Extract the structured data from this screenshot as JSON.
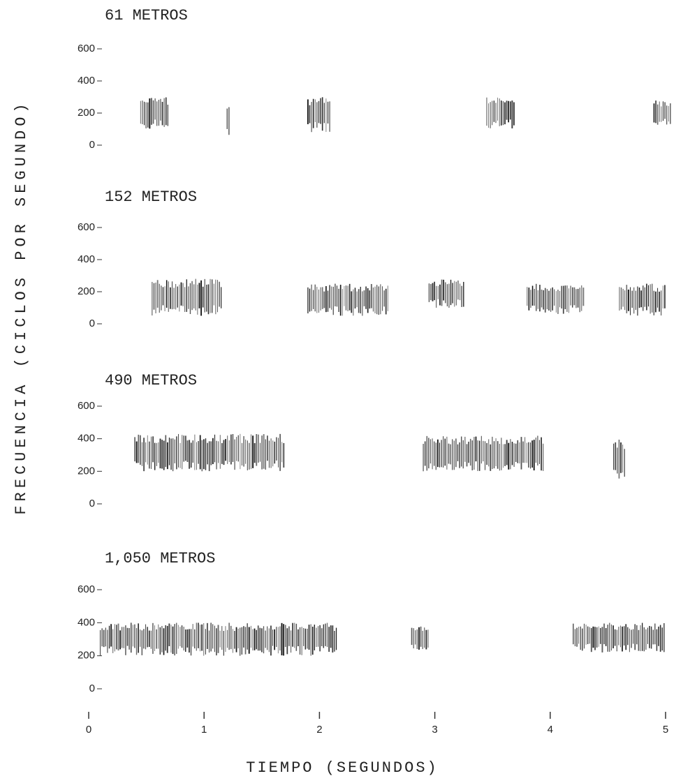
{
  "chart_data": [
    {
      "type": "spectrogram",
      "title": "61 METROS",
      "ylabel": "FRECUENCIA (CICLOS POR SEGUNDO)",
      "ylim": [
        0,
        600
      ],
      "yticks": [
        0,
        200,
        400,
        600
      ],
      "bursts": [
        {
          "t": [
            0.45,
            0.7
          ],
          "f": [
            100,
            300
          ]
        },
        {
          "t": [
            1.2,
            1.23
          ],
          "f": [
            50,
            250
          ]
        },
        {
          "t": [
            1.9,
            2.1
          ],
          "f": [
            80,
            300
          ]
        },
        {
          "t": [
            3.45,
            3.7
          ],
          "f": [
            100,
            300
          ]
        },
        {
          "t": [
            4.9,
            5.05
          ],
          "f": [
            120,
            280
          ]
        }
      ]
    },
    {
      "type": "spectrogram",
      "title": "152 METROS",
      "ylim": [
        0,
        600
      ],
      "yticks": [
        0,
        200,
        400,
        600
      ],
      "bursts": [
        {
          "t": [
            0.55,
            1.15
          ],
          "f": [
            50,
            280
          ]
        },
        {
          "t": [
            1.9,
            2.6
          ],
          "f": [
            50,
            250
          ]
        },
        {
          "t": [
            2.95,
            3.25
          ],
          "f": [
            100,
            280
          ]
        },
        {
          "t": [
            3.8,
            4.3
          ],
          "f": [
            60,
            250
          ]
        },
        {
          "t": [
            4.6,
            5.0
          ],
          "f": [
            50,
            250
          ]
        }
      ]
    },
    {
      "type": "spectrogram",
      "title": "490 METROS",
      "ylim": [
        0,
        600
      ],
      "yticks": [
        0,
        200,
        400,
        600
      ],
      "bursts": [
        {
          "t": [
            0.4,
            1.7
          ],
          "f": [
            200,
            430
          ]
        },
        {
          "t": [
            2.9,
            3.95
          ],
          "f": [
            200,
            420
          ]
        },
        {
          "t": [
            4.55,
            4.65
          ],
          "f": [
            150,
            400
          ]
        }
      ]
    },
    {
      "type": "spectrogram",
      "title": "1,050 METROS",
      "xlabel": "TIEMPO (SEGUNDOS)",
      "xlim": [
        0,
        5
      ],
      "xticks": [
        0,
        1,
        2,
        3,
        4,
        5
      ],
      "ylim": [
        0,
        600
      ],
      "yticks": [
        0,
        200,
        400,
        600
      ],
      "bursts": [
        {
          "t": [
            0.1,
            2.15
          ],
          "f": [
            200,
            400
          ]
        },
        {
          "t": [
            2.8,
            2.95
          ],
          "f": [
            220,
            380
          ]
        },
        {
          "t": [
            4.2,
            5.0
          ],
          "f": [
            220,
            400
          ]
        }
      ]
    }
  ]
}
